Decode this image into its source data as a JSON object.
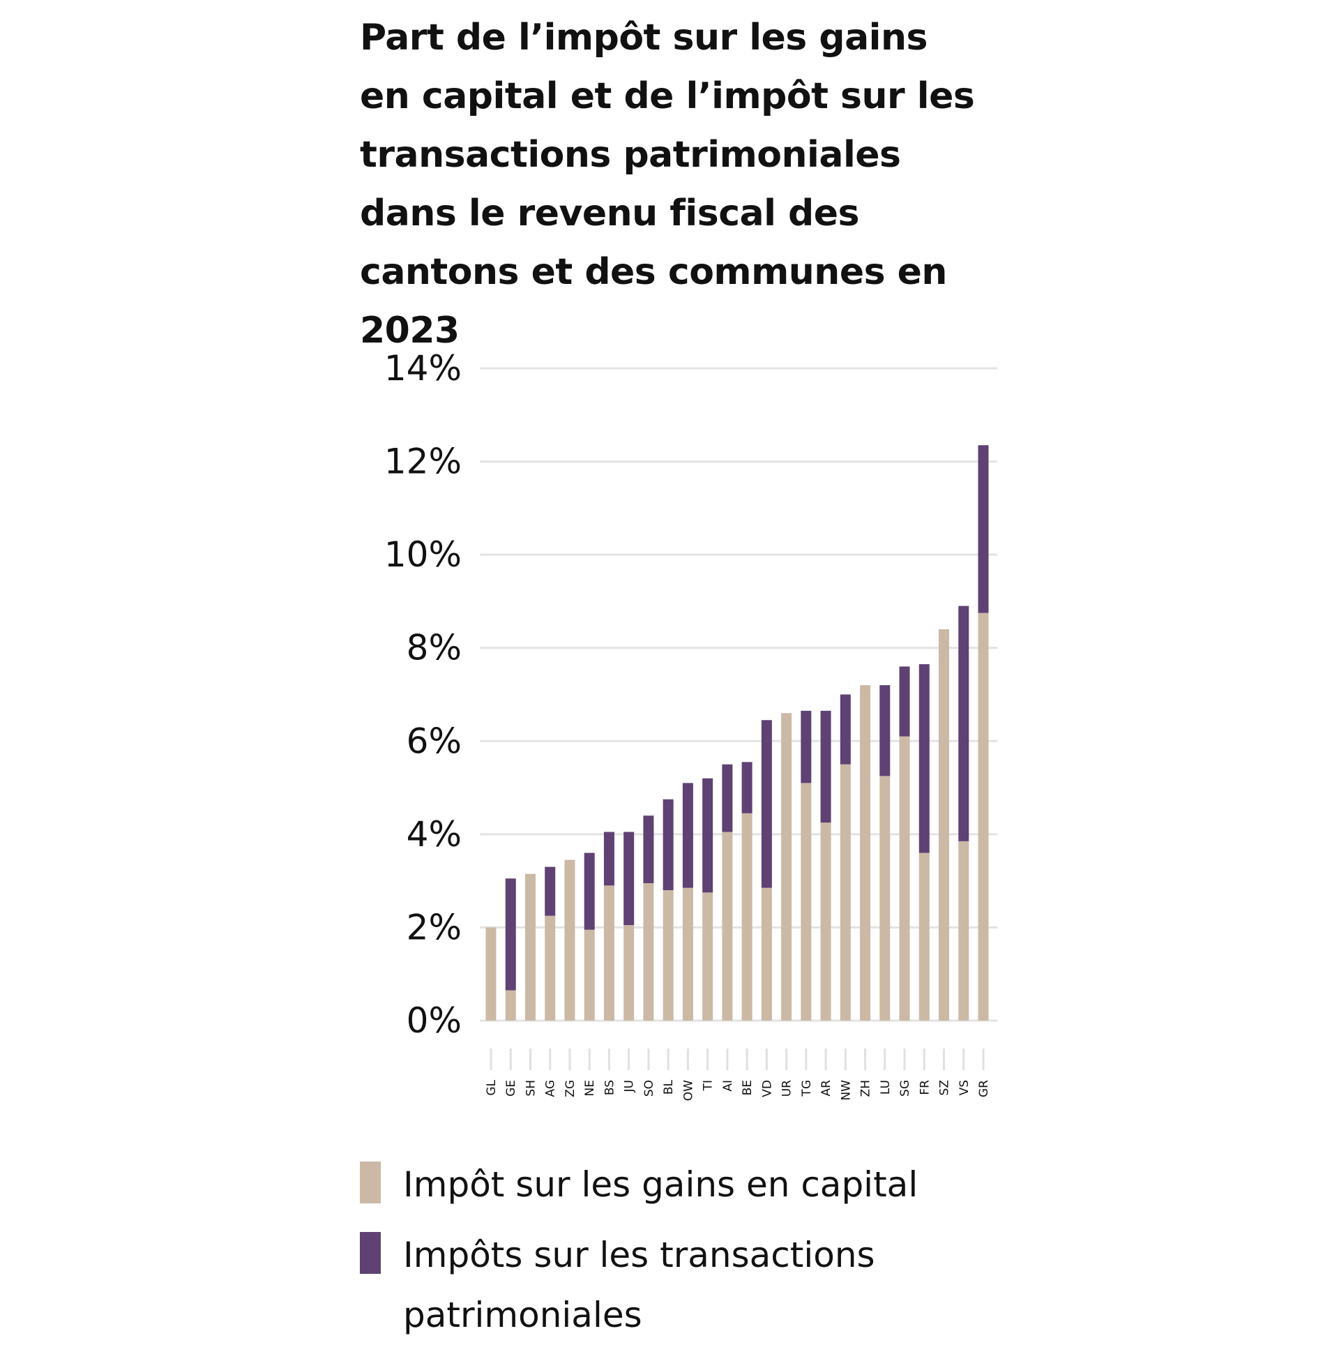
{
  "chart_data": {
    "type": "bar",
    "stacked": true,
    "title": "Part de l’impôt sur les gains en capital et de l’impôt sur les transactions patrimoniales dans le revenu fiscal des cantons et des communes en 2023",
    "xlabel": "",
    "ylabel": "",
    "ylim": [
      0,
      14
    ],
    "yticks": [
      "0%",
      "2%",
      "4%",
      "6%",
      "8%",
      "10%",
      "12%",
      "14%"
    ],
    "grid": true,
    "legend_position": "bottom",
    "categories": [
      "GL",
      "GE",
      "SH",
      "AG",
      "ZG",
      "NE",
      "BS",
      "JU",
      "SO",
      "BL",
      "OW",
      "TI",
      "AI",
      "BE",
      "VD",
      "UR",
      "TG",
      "AR",
      "NW",
      "ZH",
      "LU",
      "SG",
      "FR",
      "SZ",
      "VS",
      "GR"
    ],
    "series": [
      {
        "name": "Impôt sur les gains en capital",
        "color": "#cbb9a6",
        "values": [
          2.0,
          0.65,
          3.15,
          2.25,
          3.45,
          1.95,
          2.9,
          2.05,
          2.95,
          2.8,
          2.85,
          2.75,
          4.05,
          4.45,
          2.85,
          6.6,
          5.1,
          4.25,
          5.5,
          7.2,
          5.25,
          6.1,
          3.6,
          8.4,
          3.85,
          8.75
        ]
      },
      {
        "name": "Impôts sur les transactions patrimoniales",
        "color": "#5f4173",
        "values": [
          0,
          2.4,
          0,
          1.05,
          0,
          1.65,
          1.15,
          2.0,
          1.45,
          1.95,
          2.25,
          2.45,
          1.45,
          1.1,
          3.6,
          0,
          1.55,
          2.4,
          1.5,
          0,
          1.95,
          1.5,
          4.05,
          0,
          5.05,
          3.6
        ]
      }
    ]
  }
}
